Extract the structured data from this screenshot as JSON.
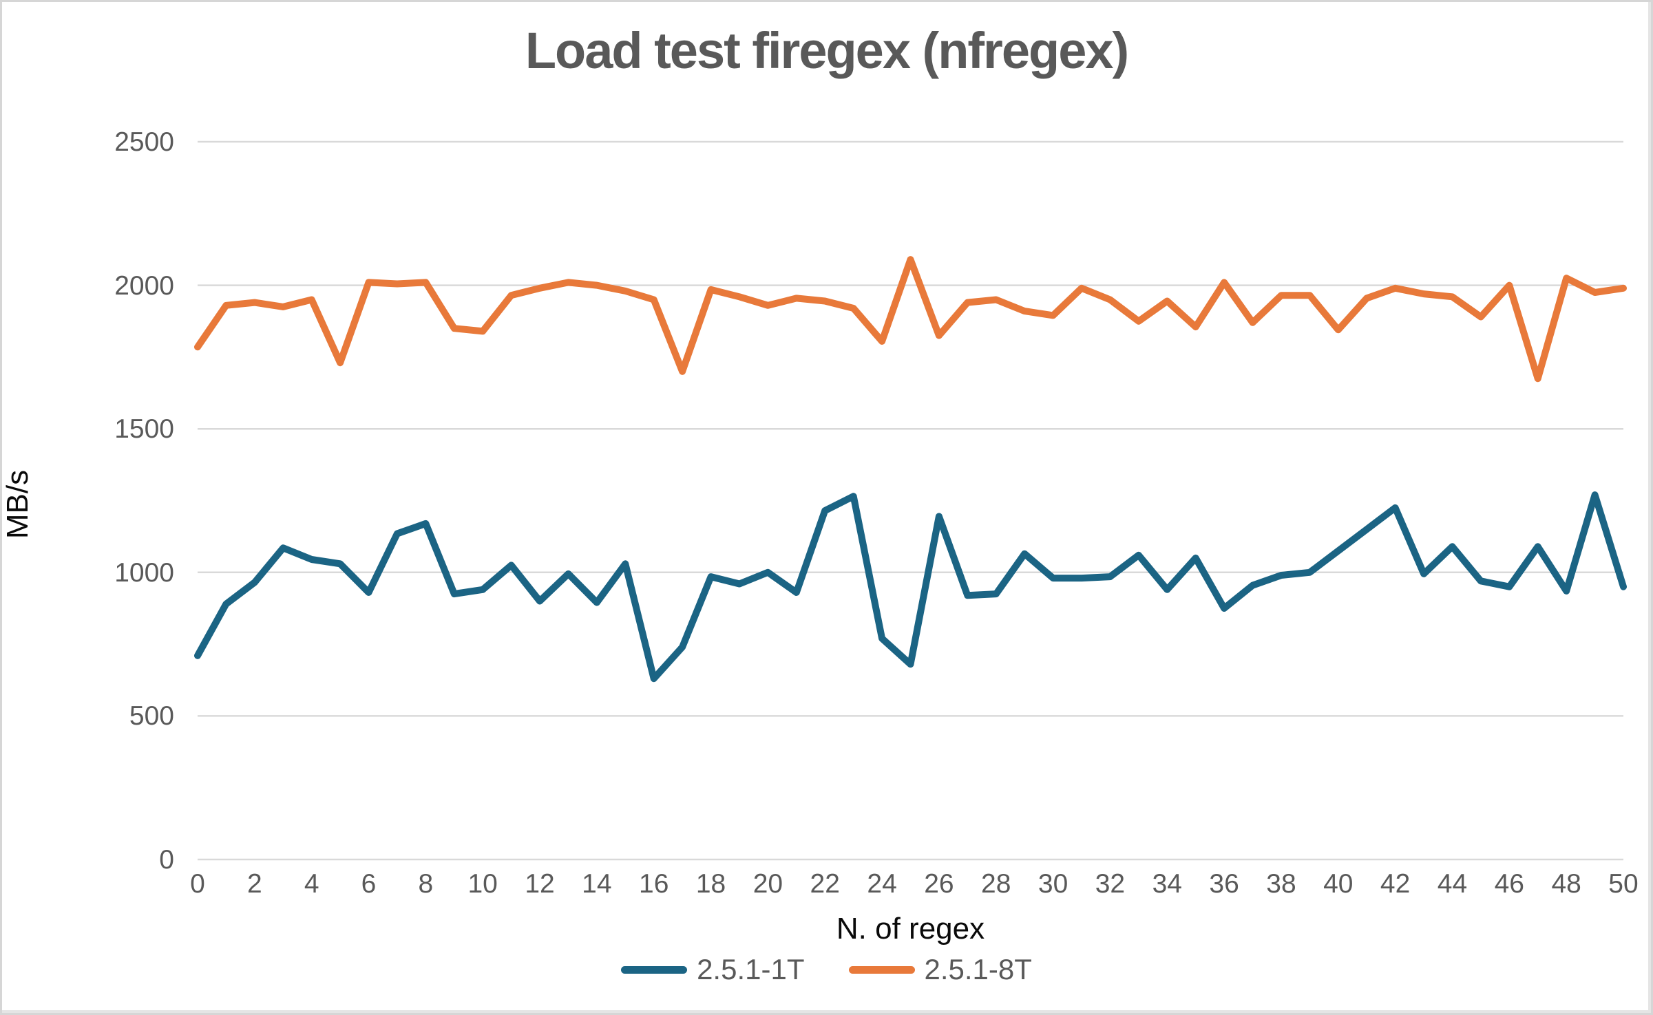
{
  "chart": {
    "title": "Load test firegex (nfregex)",
    "y_axis_title": "MB/s",
    "x_axis_title": "N. of regex"
  },
  "chart_data": {
    "type": "line",
    "title": "Load test firegex (nfregex)",
    "xlabel": "N. of regex",
    "ylabel": "MB/s",
    "x": [
      0,
      1,
      2,
      3,
      4,
      5,
      6,
      7,
      8,
      9,
      10,
      11,
      12,
      13,
      14,
      15,
      16,
      17,
      18,
      19,
      20,
      21,
      22,
      23,
      24,
      25,
      26,
      27,
      28,
      29,
      30,
      31,
      32,
      33,
      34,
      35,
      36,
      37,
      38,
      39,
      40,
      41,
      42,
      43,
      44,
      45,
      46,
      47,
      48,
      49,
      50
    ],
    "x_tick_step": 2,
    "xlim": [
      0,
      50
    ],
    "ylim": [
      0,
      2500
    ],
    "y_tick_step": 500,
    "grid": true,
    "legend_position": "bottom",
    "line_width": 10,
    "gridline_color": "#d9d9d9",
    "tick_label_color": "#595959",
    "series": [
      {
        "name": "2.5.1-1T",
        "color": "#1b6484",
        "values": [
          710,
          890,
          965,
          1085,
          1045,
          1030,
          930,
          1135,
          1170,
          925,
          940,
          1025,
          900,
          995,
          895,
          1030,
          630,
          740,
          985,
          960,
          1000,
          930,
          1215,
          1265,
          770,
          680,
          1195,
          920,
          925,
          1065,
          980,
          980,
          985,
          1060,
          940,
          1050,
          875,
          955,
          990,
          1000,
          1075,
          1150,
          1225,
          995,
          1090,
          970,
          950,
          1090,
          935,
          1270,
          950
        ]
      },
      {
        "name": "2.5.1-8T",
        "color": "#e8793a",
        "values": [
          1785,
          1930,
          1940,
          1925,
          1950,
          1730,
          2010,
          2005,
          2010,
          1850,
          1840,
          1965,
          1990,
          2010,
          2000,
          1980,
          1950,
          1700,
          1985,
          1960,
          1930,
          1955,
          1945,
          1920,
          1805,
          2090,
          1825,
          1940,
          1950,
          1910,
          1895,
          1990,
          1950,
          1875,
          1945,
          1855,
          2010,
          1870,
          1965,
          1965,
          1845,
          1955,
          1990,
          1970,
          1960,
          1890,
          2000,
          1675,
          2025,
          1975,
          1990
        ]
      }
    ]
  }
}
